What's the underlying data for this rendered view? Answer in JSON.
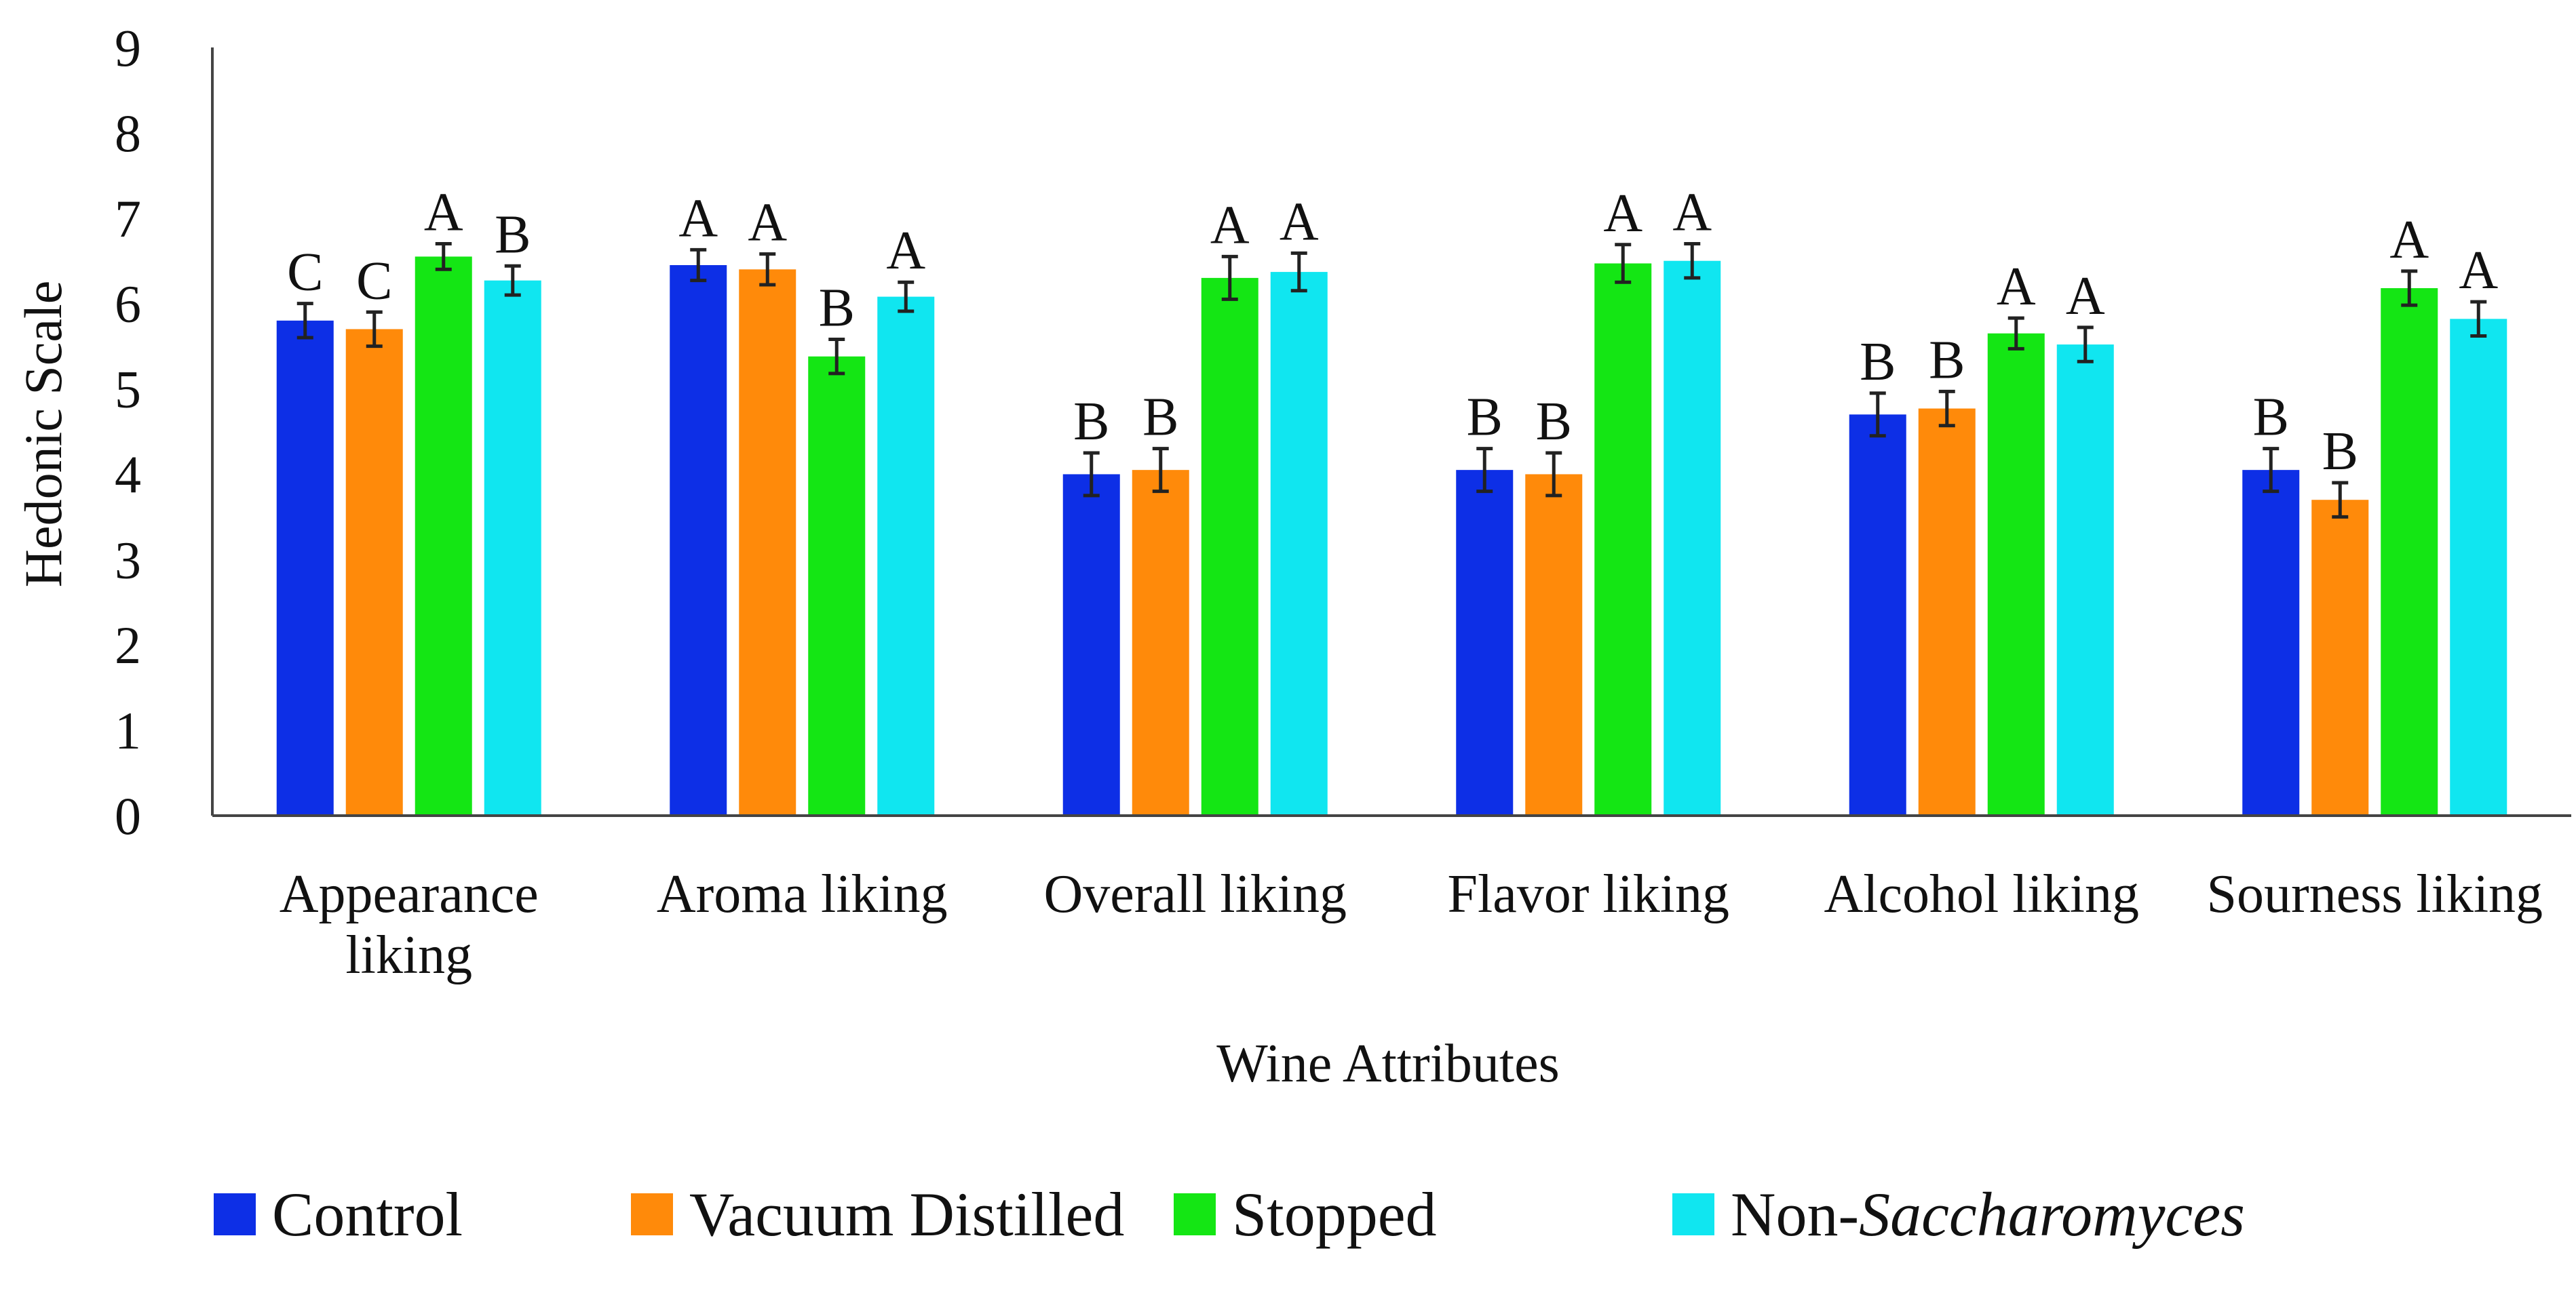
{
  "chart_data": {
    "type": "bar",
    "title": "",
    "xlabel": "Wine Attributes",
    "ylabel": "Hedonic Scale",
    "ylim": [
      0,
      9
    ],
    "yticks": [
      "0",
      "1",
      "2",
      "3",
      "4",
      "5",
      "6",
      "7",
      "8",
      "9"
    ],
    "grid": false,
    "legend_position": "bottom",
    "categories": [
      [
        "Appearance",
        "liking"
      ],
      [
        "Aroma liking"
      ],
      [
        "Overall liking"
      ],
      [
        "Flavor liking"
      ],
      [
        "Alcohol liking"
      ],
      [
        "Sourness liking"
      ]
    ],
    "series": [
      {
        "name": "Control",
        "legend_prefix": "",
        "legend_italic": "",
        "color": "#0d2fe6",
        "values": [
          5.8,
          6.45,
          4.0,
          4.05,
          4.7,
          4.05
        ],
        "errors": [
          0.2,
          0.18,
          0.25,
          0.25,
          0.25,
          0.25
        ],
        "letters": [
          "C",
          "A",
          "B",
          "B",
          "B",
          "B"
        ]
      },
      {
        "name": "Vacuum Distilled",
        "legend_prefix": "",
        "legend_italic": "",
        "color": "#ff8a0a",
        "values": [
          5.7,
          6.4,
          4.05,
          4.0,
          4.77,
          3.7
        ],
        "errors": [
          0.2,
          0.18,
          0.25,
          0.25,
          0.2,
          0.2
        ],
        "letters": [
          "C",
          "A",
          "B",
          "B",
          "B",
          "B"
        ]
      },
      {
        "name": "Stopped",
        "legend_prefix": "",
        "legend_italic": "",
        "color": "#14e614",
        "values": [
          6.55,
          5.38,
          6.3,
          6.47,
          5.65,
          6.18
        ],
        "errors": [
          0.15,
          0.2,
          0.25,
          0.22,
          0.18,
          0.2
        ],
        "letters": [
          "A",
          "B",
          "A",
          "A",
          "A",
          "A"
        ]
      },
      {
        "name": "Non-Saccharomyces",
        "legend_prefix": "Non-",
        "legend_italic": "Saccharomyces",
        "color": "#10e6f0",
        "values": [
          6.27,
          6.08,
          6.37,
          6.5,
          5.52,
          5.82
        ],
        "errors": [
          0.17,
          0.17,
          0.22,
          0.2,
          0.2,
          0.2
        ],
        "letters": [
          "B",
          "A",
          "A",
          "A",
          "A",
          "A"
        ]
      }
    ]
  }
}
